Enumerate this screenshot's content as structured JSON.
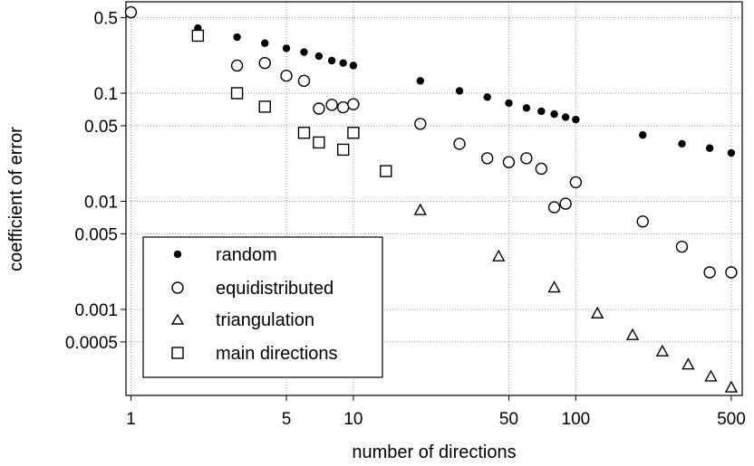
{
  "chart_data": {
    "type": "scatter",
    "xlabel": "number of directions",
    "ylabel": "coefficient of error",
    "x_scale": "log",
    "y_scale": "log",
    "xlim": [
      0.95,
      560
    ],
    "ylim": [
      0.00016,
      0.7
    ],
    "grid": true,
    "legend_position": "bottom-left",
    "x_ticks": [
      1,
      5,
      10,
      50,
      100,
      500
    ],
    "y_ticks": [
      0.5,
      0.1,
      0.05,
      0.01,
      0.005,
      0.001,
      0.0005
    ],
    "series": [
      {
        "name": "random",
        "marker": "filled-circle",
        "x": [
          1,
          2,
          3,
          4,
          5,
          6,
          7,
          8,
          9,
          10,
          20,
          30,
          40,
          50,
          60,
          70,
          80,
          90,
          100,
          200,
          300,
          400,
          500
        ],
        "y": [
          0.56,
          0.4,
          0.33,
          0.29,
          0.26,
          0.24,
          0.22,
          0.2,
          0.19,
          0.18,
          0.13,
          0.105,
          0.092,
          0.081,
          0.073,
          0.068,
          0.064,
          0.06,
          0.057,
          0.041,
          0.034,
          0.031,
          0.028
        ]
      },
      {
        "name": "equidistributed",
        "marker": "open-circle",
        "x": [
          1,
          3,
          4,
          5,
          6,
          7,
          8,
          9,
          10,
          20,
          30,
          40,
          50,
          60,
          70,
          80,
          90,
          100,
          200,
          300,
          400,
          500
        ],
        "y": [
          0.56,
          0.18,
          0.19,
          0.145,
          0.13,
          0.072,
          0.078,
          0.074,
          0.079,
          0.052,
          0.034,
          0.025,
          0.023,
          0.025,
          0.02,
          0.0088,
          0.0095,
          0.015,
          0.0065,
          0.0038,
          0.0022,
          0.0022
        ]
      },
      {
        "name": "triangulation",
        "marker": "open-triangle",
        "x": [
          20,
          45,
          80,
          125,
          180,
          245,
          320,
          405,
          500
        ],
        "y": [
          0.0083,
          0.0031,
          0.0016,
          0.00092,
          0.00058,
          0.00041,
          0.00031,
          0.00024,
          0.00019
        ]
      },
      {
        "name": "main directions",
        "marker": "open-square",
        "x": [
          2,
          3,
          4,
          6,
          7,
          9,
          10,
          14
        ],
        "y": [
          0.34,
          0.1,
          0.075,
          0.043,
          0.035,
          0.03,
          0.043,
          0.019
        ]
      }
    ]
  }
}
